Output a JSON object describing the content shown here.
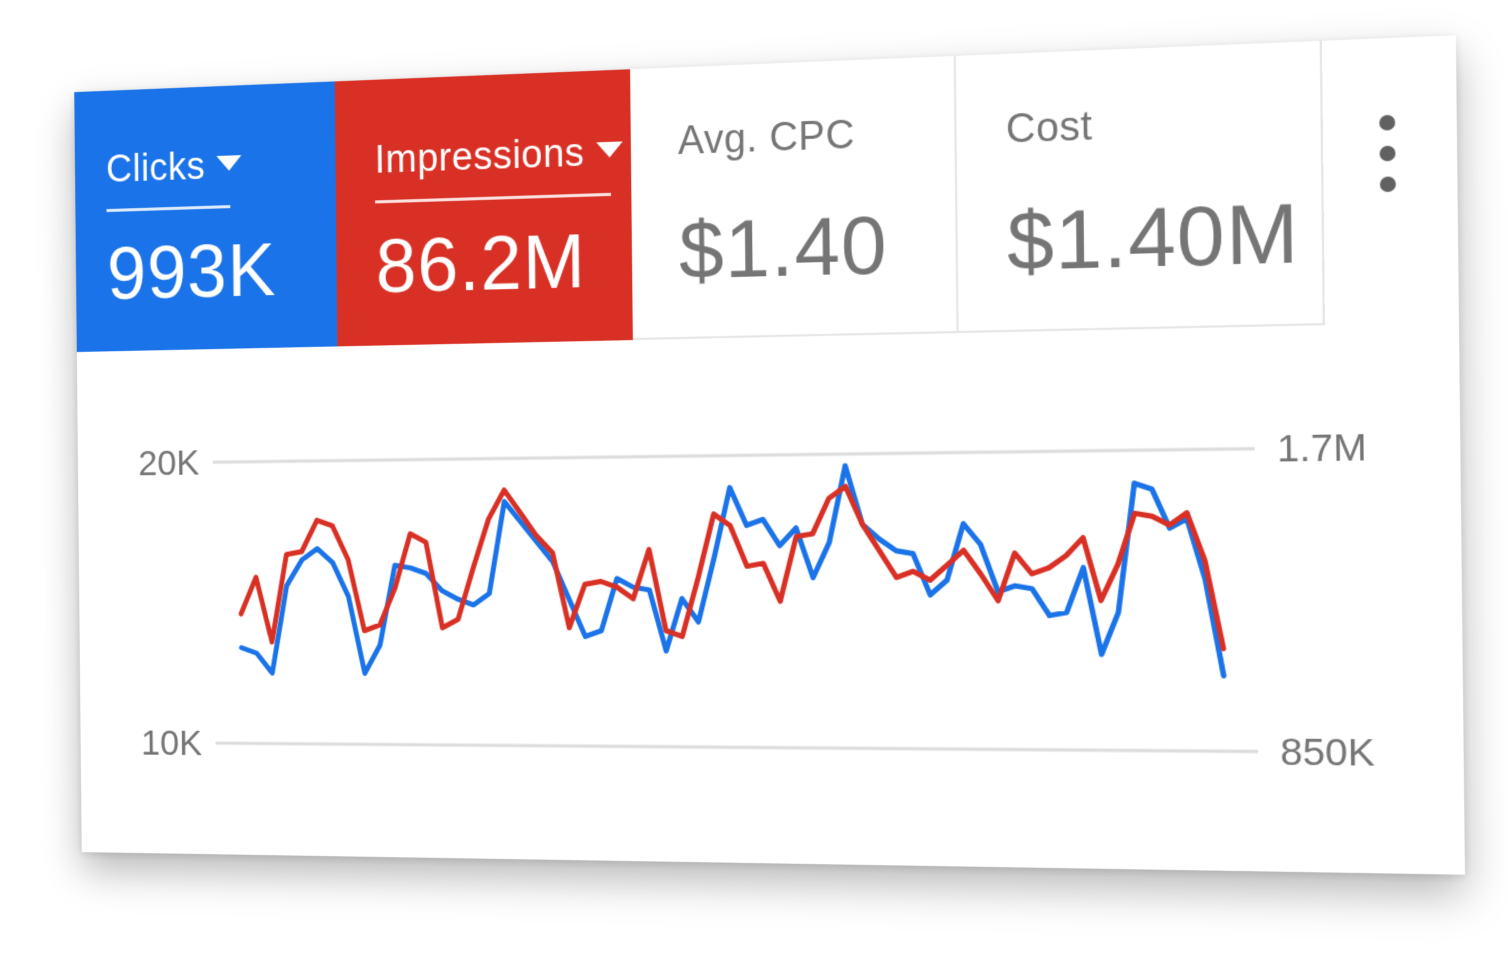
{
  "metrics": {
    "clicks": {
      "label": "Clicks",
      "value": "993K",
      "color": "#1a73e8"
    },
    "impressions": {
      "label": "Impressions",
      "value": "86.2M",
      "color": "#d93025"
    },
    "avg_cpc": {
      "label": "Avg. CPC",
      "value": "$1.40"
    },
    "cost": {
      "label": "Cost",
      "value": "$1.40M"
    }
  },
  "more_menu": {
    "icon": "more-vert-icon"
  },
  "chart_data": {
    "type": "line",
    "y_left": {
      "ticks": [
        "20K",
        "10K"
      ],
      "range": [
        10000,
        20000
      ]
    },
    "y_right": {
      "ticks": [
        "1.7M",
        "850K"
      ],
      "range": [
        850000,
        1700000
      ]
    },
    "grid": true,
    "series": [
      {
        "axis": "left",
        "color": "#1a73e8",
        "values": [
          13400,
          13200,
          12500,
          15600,
          16500,
          16900,
          16400,
          15200,
          12500,
          13500,
          16300,
          16200,
          16000,
          15400,
          15100,
          14900,
          15300,
          18500,
          17800,
          17100,
          16400,
          15100,
          13800,
          14000,
          15800,
          15500,
          15400,
          13300,
          15100,
          14300,
          16500,
          18900,
          17600,
          17800,
          16900,
          17500,
          15800,
          17000,
          19600,
          17600,
          17100,
          16700,
          16600,
          15200,
          15700,
          17600,
          16900,
          15300,
          15500,
          15400,
          14500,
          14600,
          16100,
          13200,
          14600,
          18900,
          18700,
          17400,
          17700,
          15700,
          12500
        ]
      },
      {
        "axis": "left",
        "color": "#d93025",
        "values": [
          14600,
          15900,
          13600,
          16700,
          16800,
          17900,
          17700,
          16500,
          14000,
          14200,
          15500,
          17400,
          17100,
          14100,
          14400,
          16200,
          17900,
          18900,
          18100,
          17300,
          16700,
          14100,
          15600,
          15700,
          15500,
          15100,
          16800,
          14000,
          13800,
          15800,
          18000,
          17600,
          16200,
          16300,
          15000,
          17200,
          17300,
          18500,
          18900,
          17600,
          16700,
          15800,
          16000,
          15700,
          16200,
          16700,
          15900,
          15000,
          16600,
          15900,
          16100,
          16500,
          17100,
          15000,
          16200,
          17900,
          17800,
          17500,
          17900,
          16300,
          13400
        ]
      }
    ]
  }
}
